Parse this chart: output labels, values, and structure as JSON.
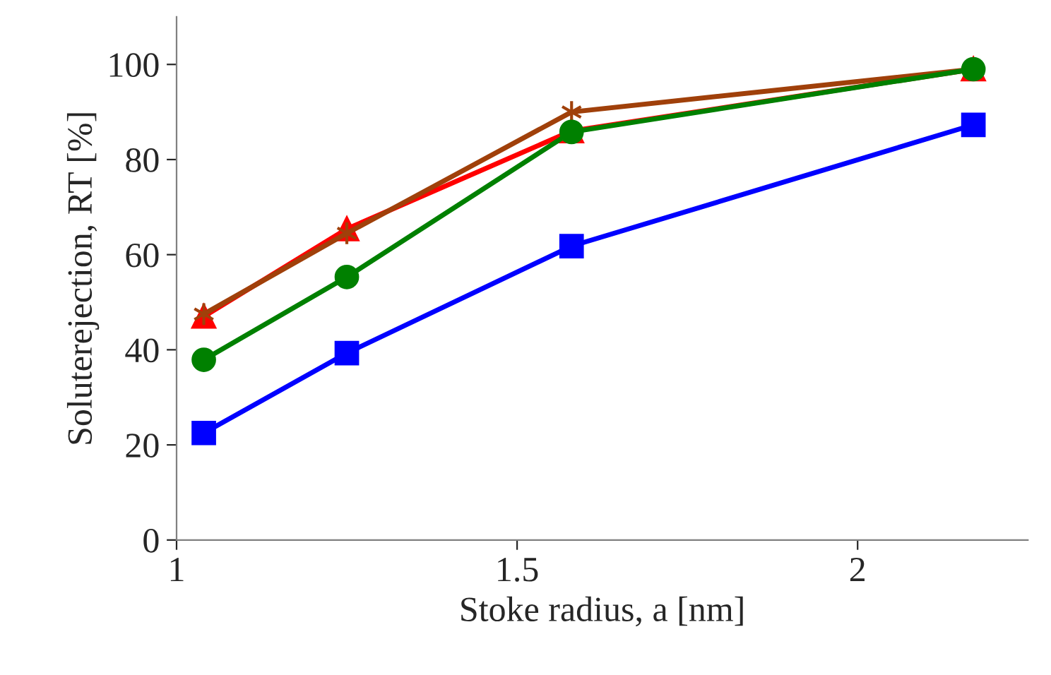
{
  "chart_data": {
    "type": "line",
    "xlabel": "Stoke radius, a [nm]",
    "ylabel": "Soluterejection, RT [%]",
    "x": [
      1.04,
      1.25,
      1.58,
      2.17
    ],
    "series": [
      {
        "color": "#0000ff",
        "marker": "square",
        "values": [
          22.5,
          39.3,
          61.8,
          87.3
        ]
      },
      {
        "color": "#ff0000",
        "marker": "triangle",
        "values": [
          47,
          65.4,
          86,
          99
        ]
      },
      {
        "color": "#a0400a",
        "marker": "cross",
        "values": [
          47.5,
          64.5,
          90,
          99
        ]
      },
      {
        "color": "#008000",
        "marker": "circle",
        "values": [
          37.9,
          55.3,
          85.8,
          99
        ]
      }
    ],
    "xlim": [
      1,
      2.25
    ],
    "xticks": [
      {
        "value": 1,
        "label": "1"
      },
      1.5,
      {
        "value": 2,
        "label": "2"
      }
    ],
    "ylim": [
      0,
      110
    ],
    "yticks": [
      0,
      20,
      40,
      60,
      80,
      100
    ],
    "grid": false,
    "legend": false
  }
}
